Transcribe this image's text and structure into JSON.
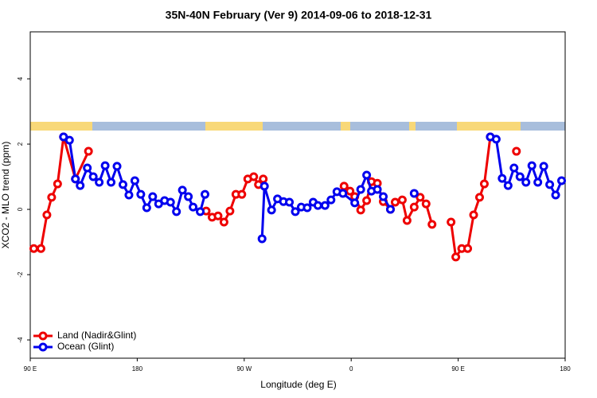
{
  "chart_data": {
    "type": "line",
    "title": "35N-40N February (Ver 9)   2014-09-06 to 2018-12-31",
    "x_label": "Longitude (deg E)",
    "y_label": "XCO2 - MLO trend (ppm)",
    "xlim": [
      90,
      540
    ],
    "xticks": [
      {
        "value": 90,
        "label": "90 E"
      },
      {
        "value": 180,
        "label": "180"
      },
      {
        "value": 270,
        "label": "90 W"
      },
      {
        "value": 360,
        "label": "0"
      },
      {
        "value": 450,
        "label": "90 E"
      },
      {
        "value": 540,
        "label": "180"
      }
    ],
    "ylim": [
      -4.56,
      5.44
    ],
    "yticks": [
      -4,
      -2,
      0,
      2,
      4
    ],
    "legend": "bottom-left",
    "series": [
      {
        "name": "Land (Nadir&Glint)",
        "color": "#ee0000",
        "x": [
          93,
          99,
          104,
          108,
          113,
          118,
          128,
          139,
          null,
          238,
          243,
          248,
          253,
          258,
          263,
          268,
          273,
          278,
          282,
          286,
          null,
          354,
          359,
          363,
          368,
          373,
          377,
          382,
          387,
          393,
          397,
          403,
          407,
          413,
          418,
          423,
          428,
          null,
          444,
          448,
          453,
          458,
          463,
          468,
          472,
          477,
          null,
          499
        ],
        "values": [
          -1.2,
          -1.2,
          -0.17,
          0.37,
          0.78,
          2.22,
          0.93,
          1.78,
          null,
          -0.05,
          -0.24,
          -0.2,
          -0.39,
          -0.05,
          0.46,
          0.46,
          0.93,
          1.0,
          0.76,
          0.93,
          null,
          0.71,
          0.56,
          0.39,
          -0.02,
          0.27,
          0.85,
          0.8,
          0.24,
          0.0,
          0.22,
          0.29,
          -0.34,
          0.07,
          0.37,
          0.17,
          -0.46,
          null,
          -0.39,
          -1.46,
          -1.2,
          -1.2,
          -0.17,
          0.37,
          0.78,
          2.22,
          null,
          1.78
        ]
      },
      {
        "name": "Ocean (Glint)",
        "color": "#0000ee",
        "x": [
          118,
          123,
          128,
          132,
          138,
          143,
          148,
          153,
          158,
          163,
          168,
          173,
          178,
          183,
          188,
          193,
          198,
          203,
          208,
          213,
          218,
          223,
          227,
          233,
          237,
          null,
          285,
          287,
          293,
          298,
          303,
          308,
          313,
          318,
          323,
          328,
          332,
          338,
          343,
          348,
          353,
          363,
          368,
          373,
          377,
          382,
          387,
          393,
          null,
          413,
          null,
          477,
          482,
          487,
          492,
          497,
          502,
          507,
          512,
          517,
          522,
          527,
          532,
          537
        ],
        "values": [
          2.22,
          2.12,
          0.93,
          0.73,
          1.27,
          1.0,
          0.83,
          1.34,
          0.83,
          1.32,
          0.76,
          0.44,
          0.88,
          0.46,
          0.05,
          0.39,
          0.17,
          0.27,
          0.22,
          -0.07,
          0.59,
          0.39,
          0.07,
          -0.07,
          0.46,
          null,
          -0.9,
          0.71,
          -0.02,
          0.32,
          0.24,
          0.22,
          -0.07,
          0.07,
          0.05,
          0.22,
          0.12,
          0.12,
          0.29,
          0.54,
          0.49,
          0.2,
          0.61,
          1.05,
          0.56,
          0.61,
          0.39,
          0.0,
          null,
          0.49,
          null,
          2.22,
          2.15,
          0.95,
          0.73,
          1.27,
          1.0,
          0.83,
          1.34,
          0.83,
          1.32,
          0.76,
          0.44,
          0.88
        ]
      }
    ]
  }
}
